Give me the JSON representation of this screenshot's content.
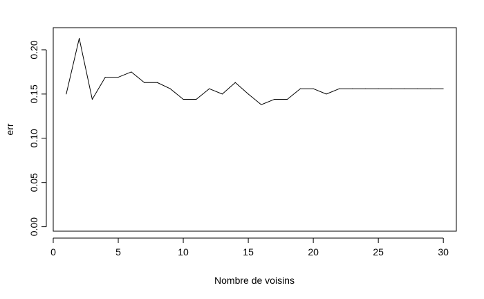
{
  "chart_data": {
    "type": "line",
    "xlabel": "Nombre de voisins",
    "ylabel": "err",
    "xlim": [
      0,
      31
    ],
    "ylim": [
      -0.005,
      0.225
    ],
    "grid": false,
    "x_ticks": [
      0,
      5,
      10,
      15,
      20,
      25,
      30
    ],
    "y_ticks": [
      0.0,
      0.05,
      0.1,
      0.15,
      0.2
    ],
    "x_tick_labels": [
      "0",
      "5",
      "10",
      "15",
      "20",
      "25",
      "30"
    ],
    "y_tick_labels": [
      "0.00",
      "0.05",
      "0.10",
      "0.15",
      "0.20"
    ],
    "series": [
      {
        "color": "#000000",
        "x": [
          1,
          2,
          3,
          4,
          5,
          6,
          7,
          8,
          9,
          10,
          11,
          12,
          13,
          14,
          15,
          16,
          17,
          18,
          19,
          20,
          21,
          22,
          23,
          24,
          25,
          26,
          27,
          28,
          29,
          30
        ],
        "y": [
          0.15,
          0.213,
          0.144,
          0.169,
          0.169,
          0.175,
          0.163,
          0.163,
          0.156,
          0.144,
          0.144,
          0.156,
          0.15,
          0.163,
          0.15,
          0.138,
          0.144,
          0.144,
          0.156,
          0.156,
          0.15,
          0.156,
          0.156,
          0.156,
          0.156,
          0.156,
          0.156,
          0.156,
          0.156,
          0.156
        ]
      }
    ]
  }
}
